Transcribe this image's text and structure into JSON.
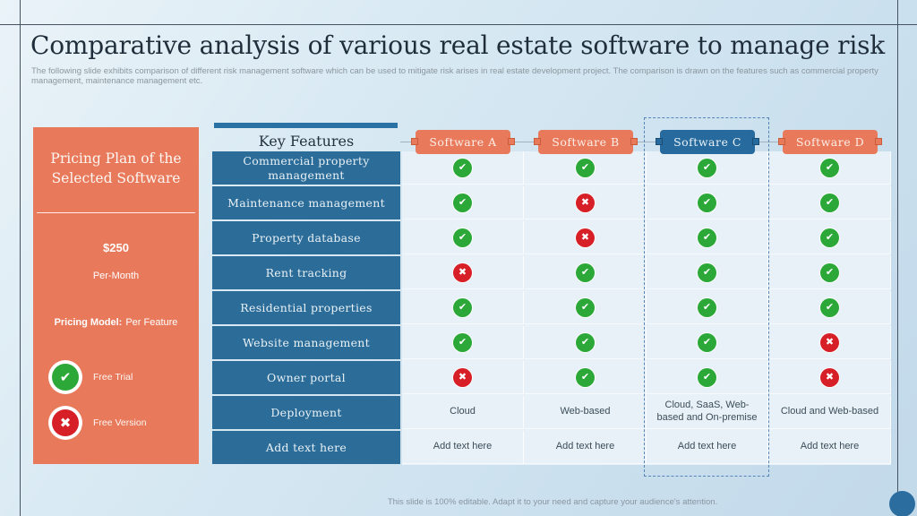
{
  "slide": {
    "title": "Comparative analysis of various real estate software to manage risk",
    "subtitle": "The following slide exhibits comparison of different risk management software which can be used to mitigate risk arises in real estate development project. The comparison is drawn on the features such as commercial property management, maintenance management etc.",
    "footer": "This slide is 100% editable. Adapt it to your need and capture your audience's attention."
  },
  "pricing_panel": {
    "title": "Pricing Plan of the Selected Software",
    "price": "$250",
    "period": "Per-Month",
    "pricing_model_label": "Pricing Model:",
    "pricing_model_value": "Per Feature",
    "legend": [
      {
        "icon": "check",
        "label": "Free Trial"
      },
      {
        "icon": "cross",
        "label": "Free Version"
      }
    ]
  },
  "table": {
    "key_features_header": "Key Features",
    "columns": [
      {
        "label": "Software A",
        "selected": false
      },
      {
        "label": "Software B",
        "selected": false
      },
      {
        "label": "Software C",
        "selected": true
      },
      {
        "label": "Software D",
        "selected": false
      }
    ],
    "rows": [
      {
        "feature": "Commercial property management",
        "values": [
          "check",
          "check",
          "check",
          "check"
        ]
      },
      {
        "feature": "Maintenance management",
        "values": [
          "check",
          "cross",
          "check",
          "check"
        ]
      },
      {
        "feature": "Property database",
        "values": [
          "check",
          "cross",
          "check",
          "check"
        ]
      },
      {
        "feature": "Rent tracking",
        "values": [
          "cross",
          "check",
          "check",
          "check"
        ]
      },
      {
        "feature": "Residential properties",
        "values": [
          "check",
          "check",
          "check",
          "check"
        ]
      },
      {
        "feature": "Website management",
        "values": [
          "check",
          "check",
          "check",
          "cross"
        ]
      },
      {
        "feature": "Owner portal",
        "values": [
          "cross",
          "check",
          "check",
          "cross"
        ]
      },
      {
        "feature": "Deployment",
        "values": [
          "Cloud",
          "Web-based",
          "Cloud, SaaS, Web-based and On-premise",
          "Cloud and Web-based"
        ]
      },
      {
        "feature": "Add text here",
        "values": [
          "Add text here",
          "Add text here",
          "Add text here",
          "Add text here"
        ]
      }
    ]
  },
  "colors": {
    "accent_orange": "#e8795b",
    "accent_blue": "#2b6c99",
    "selected_tab_blue": "#276a9d",
    "check_green": "#2ba837",
    "cross_red": "#d71f27",
    "slide_bg": "#d3e5f1"
  },
  "icons": {
    "check": "✔",
    "cross": "✖"
  }
}
